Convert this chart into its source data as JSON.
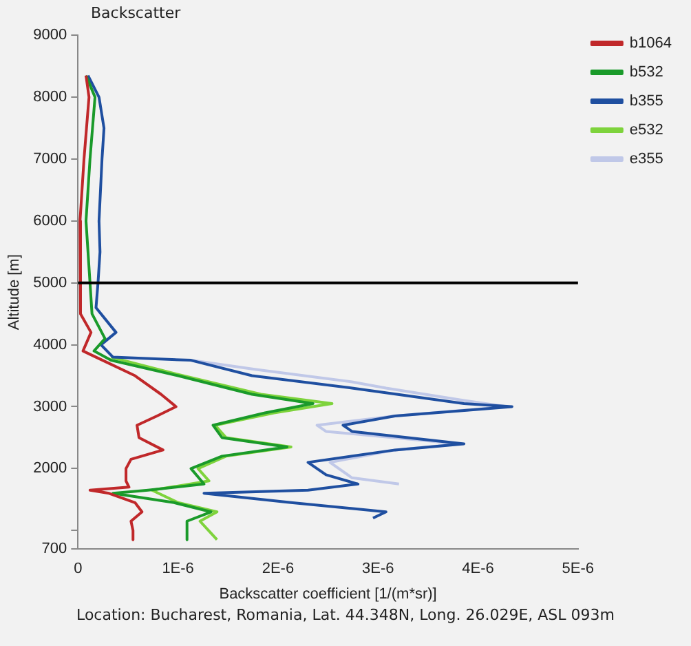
{
  "chart_data": {
    "type": "line",
    "title": "Backscatter",
    "xlabel": "Backscatter coefficient [1/(m*sr)]",
    "ylabel": "Altitude [m]",
    "annotations": [
      "Location: Bucharest, Romania, Lat. 44.348N, Long. 26.029E, ASL 093m"
    ],
    "xlim": [
      0,
      5e-06
    ],
    "xticks": [
      0,
      {
        "value": 1e-06,
        "label": "1E-6"
      },
      {
        "value": 2e-06,
        "label": "2E-6"
      },
      {
        "value": 3e-06,
        "label": "3E-6"
      },
      {
        "value": 4e-06,
        "label": "4E-6"
      },
      {
        "value": 5e-06,
        "label": "5E-6"
      }
    ],
    "ylim": [
      700,
      9000
    ],
    "yticks": [
      700,
      {
        "value": 1000,
        "label": null
      },
      2000,
      3000,
      4000,
      5000,
      6000,
      7000,
      8000,
      9000
    ],
    "grid": false,
    "legend": "top right",
    "marker": "none",
    "line_style": "solid",
    "ref_lines": [
      {
        "axis": "y",
        "value": 5000,
        "color": "#000000"
      }
    ],
    "series": [
      {
        "name": "b1064",
        "color": "#c0282a",
        "x": [
          8e-08,
          1.1e-07,
          6e-08,
          2e-08,
          3e-08,
          2e-08,
          1.3e-07,
          5e-08,
          1.8e-07,
          5.7e-07,
          8.3e-07,
          9.8e-07,
          7.9e-07,
          5.9e-07,
          6.1e-07,
          8.5e-07,
          5.3e-07,
          4.8e-07,
          4.8e-07,
          5.1e-07,
          1.2e-07,
          3.1e-07,
          5.7e-07,
          6.4e-07,
          5.3e-07,
          5.5e-07,
          5.5e-07
        ],
        "values": [
          8350,
          8000,
          7000,
          6000,
          5000,
          4500,
          4200,
          3900,
          3800,
          3500,
          3200,
          3000,
          2850,
          2700,
          2500,
          2300,
          2150,
          2000,
          1800,
          1700,
          1650,
          1600,
          1450,
          1300,
          1150,
          1000,
          850
        ]
      },
      {
        "name": "b532",
        "color": "#1a9a2a",
        "x": [
          8e-08,
          1.7e-07,
          1.2e-07,
          8e-08,
          1.2e-07,
          1.4e-07,
          2.7e-07,
          1.6e-07,
          3.3e-07,
          1e-06,
          1.74e-06,
          2.35e-06,
          1.87e-06,
          1.35e-06,
          1.44e-06,
          2.09e-06,
          1.44e-06,
          1.13e-06,
          1.26e-06,
          7e-07,
          3.5e-07,
          9.6e-07,
          1.33e-06,
          1.09e-06,
          1.09e-06
        ],
        "values": [
          8350,
          8000,
          7000,
          6000,
          5000,
          4500,
          4100,
          3900,
          3750,
          3500,
          3200,
          3050,
          2900,
          2700,
          2500,
          2350,
          2200,
          2000,
          1750,
          1650,
          1600,
          1450,
          1300,
          1150,
          850
        ]
      },
      {
        "name": "b355",
        "color": "#1f4fa0",
        "x": [
          1e-07,
          2.1e-07,
          2.6e-07,
          2.4e-07,
          2.1e-07,
          2.2e-07,
          2e-07,
          1.8e-07,
          3.8e-07,
          2.3e-07,
          3.5e-07,
          1.13e-06,
          1.74e-06,
          2.74e-06,
          3.86e-06,
          4.34e-06,
          3.17e-06,
          2.65e-06,
          2.74e-06,
          3.86e-06,
          3.17e-06,
          2.3e-06,
          2.48e-06,
          2.8e-06,
          2.3e-06,
          1.26e-06,
          2.13e-06,
          3.08e-06,
          2.95e-06
        ],
        "values": [
          8350,
          8000,
          7500,
          7000,
          6000,
          5500,
          5000,
          4600,
          4200,
          4000,
          3800,
          3750,
          3500,
          3300,
          3050,
          3000,
          2850,
          2700,
          2600,
          2400,
          2300,
          2100,
          1900,
          1750,
          1650,
          1600,
          1450,
          1300,
          1200
        ]
      },
      {
        "name": "e532",
        "color": "#7ed33c",
        "x": [
          3.3e-07,
          1.05e-06,
          1.83e-06,
          2.54e-06,
          1.96e-06,
          1.37e-06,
          1.48e-06,
          2.13e-06,
          1.48e-06,
          1.2e-06,
          1.31e-06,
          7.4e-07,
          1e-06,
          1.39e-06,
          1.22e-06,
          1.39e-06
        ],
        "values": [
          3800,
          3500,
          3200,
          3050,
          2900,
          2700,
          2500,
          2350,
          2200,
          2000,
          1800,
          1650,
          1450,
          1300,
          1150,
          850
        ]
      },
      {
        "name": "e355",
        "color": "#c0c8e8",
        "x": [
          1.13e-06,
          1.78e-06,
          2.74e-06,
          3.08e-06,
          3.86e-06,
          4.29e-06,
          3.17e-06,
          2.39e-06,
          2.48e-06,
          3.82e-06,
          3.17e-06,
          2.52e-06,
          2.74e-06,
          3.21e-06
        ],
        "values": [
          3750,
          3600,
          3400,
          3300,
          3100,
          3000,
          2850,
          2700,
          2600,
          2400,
          2300,
          2100,
          1850,
          1750
        ]
      }
    ]
  }
}
